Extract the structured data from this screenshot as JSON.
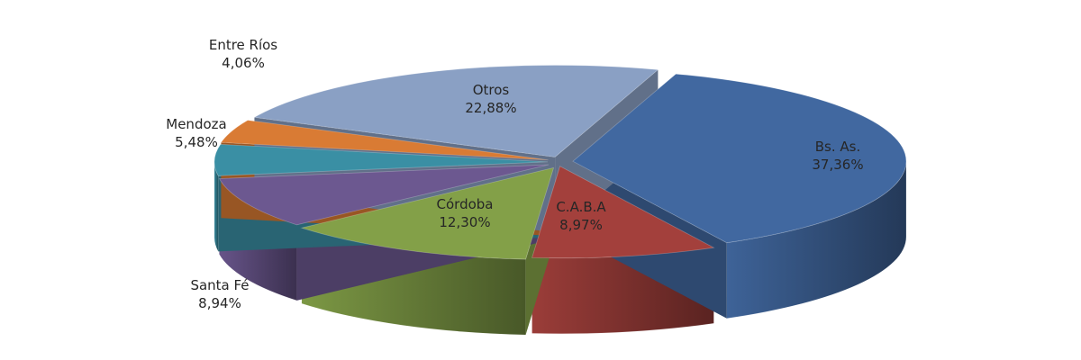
{
  "chart_data": {
    "type": "pie",
    "style": "3d-exploded",
    "start_slice": "Bs. As.",
    "slices": [
      {
        "label": "Bs. As.",
        "value_text": "37,36%",
        "value": 37.36,
        "color": "#4168a0"
      },
      {
        "label": "C.A.B.A",
        "value_text": "8,97%",
        "value": 8.97,
        "color": "#a3403c"
      },
      {
        "label": "Córdoba",
        "value_text": "12,30%",
        "value": 12.3,
        "color": "#83a048"
      },
      {
        "label": "Santa Fé",
        "value_text": "8,94%",
        "value": 8.94,
        "color": "#6c5890"
      },
      {
        "label": "Mendoza",
        "value_text": "5,48%",
        "value": 5.48,
        "color": "#3a8fa4"
      },
      {
        "label": "Entre Ríos",
        "value_text": "4,06%",
        "value": 4.06,
        "color": "#d97b34"
      },
      {
        "label": "Otros",
        "value_text": "22,88%",
        "value": 22.88,
        "color": "#8aa0c4"
      }
    ]
  }
}
